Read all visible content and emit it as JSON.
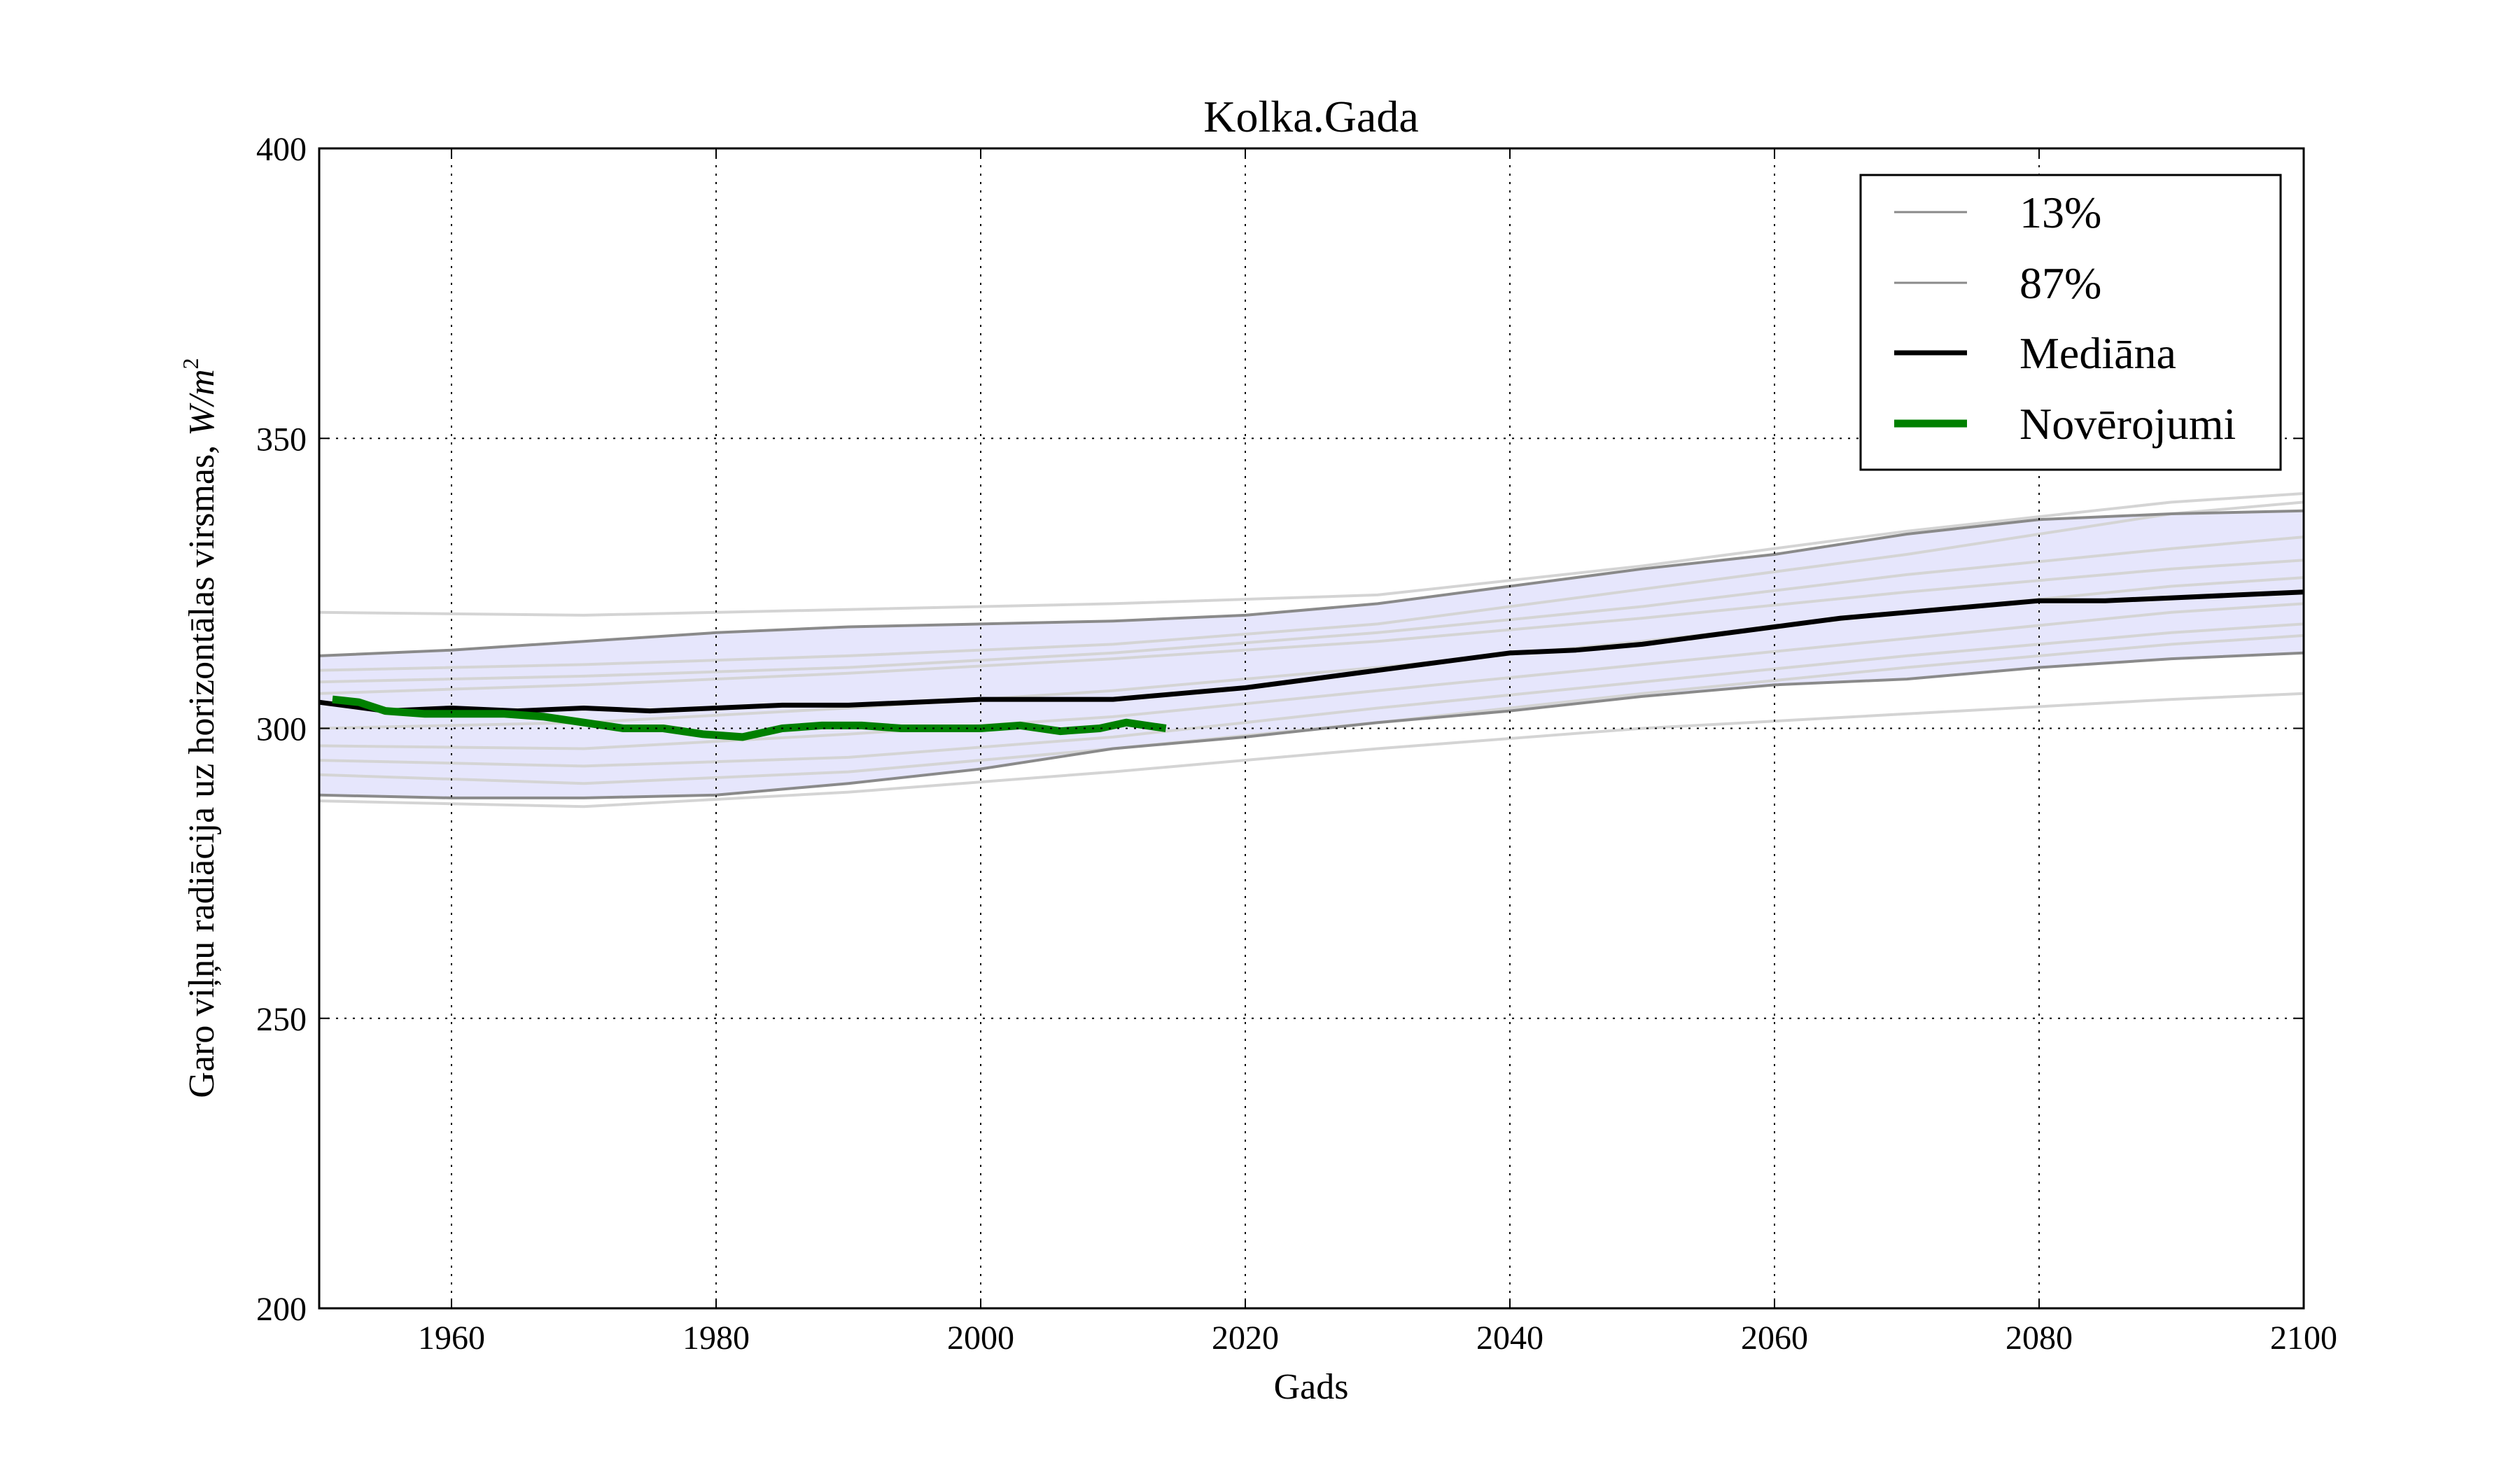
{
  "chart_data": {
    "type": "line",
    "title": "Kolka.Gada",
    "xlabel": "Gads",
    "ylabel": "Garo viļņu radiācija uz horizontālas virsmas, ",
    "ylabel_unit": "W/m",
    "ylabel_unit_sup": "2",
    "xlim": [
      1950,
      2100
    ],
    "ylim": [
      200,
      400
    ],
    "xticks": [
      1960,
      1980,
      2000,
      2020,
      2040,
      2060,
      2080,
      2100
    ],
    "yticks": [
      200,
      250,
      300,
      350,
      400
    ],
    "grid": true,
    "legend_position": "top-right",
    "legend": [
      {
        "label": "13%",
        "style": "thin-gray"
      },
      {
        "label": "87%",
        "style": "thin-gray"
      },
      {
        "label": "Mediāna",
        "style": "thick-black"
      },
      {
        "label": "Novērojumi",
        "style": "thick-green"
      }
    ],
    "colors": {
      "band_fill": "#e6e6fc",
      "percentile": "#8a8a8a",
      "ensemble": "#d4d4d4",
      "median": "#000000",
      "observations": "#008000"
    },
    "band": {
      "x": [
        1950,
        1960,
        1970,
        1980,
        1990,
        2000,
        2010,
        2020,
        2030,
        2040,
        2050,
        2060,
        2070,
        2080,
        2090,
        2100
      ],
      "lower": [
        288.5,
        288,
        288,
        288.5,
        290.5,
        293,
        296.5,
        298.5,
        301,
        303,
        305.5,
        307.5,
        308.5,
        310.5,
        312,
        313
      ],
      "upper": [
        312.5,
        313.5,
        315,
        316.5,
        317.5,
        318,
        318.5,
        319.5,
        321.5,
        324.5,
        327.5,
        330,
        333.5,
        336,
        337,
        337.5
      ]
    },
    "series": [
      {
        "name": "13%",
        "x": [
          1950,
          1960,
          1970,
          1980,
          1990,
          2000,
          2010,
          2020,
          2030,
          2040,
          2050,
          2060,
          2070,
          2080,
          2090,
          2100
        ],
        "values": [
          288.5,
          288,
          288,
          288.5,
          290.5,
          293,
          296.5,
          298.5,
          301,
          303,
          305.5,
          307.5,
          308.5,
          310.5,
          312,
          313
        ]
      },
      {
        "name": "87%",
        "x": [
          1950,
          1960,
          1970,
          1980,
          1990,
          2000,
          2010,
          2020,
          2030,
          2040,
          2050,
          2060,
          2070,
          2080,
          2090,
          2100
        ],
        "values": [
          312.5,
          313.5,
          315,
          316.5,
          317.5,
          318,
          318.5,
          319.5,
          321.5,
          324.5,
          327.5,
          330,
          333.5,
          336,
          337,
          337.5
        ]
      },
      {
        "name": "Mediāna",
        "x": [
          1950,
          1955,
          1960,
          1965,
          1970,
          1975,
          1980,
          1985,
          1990,
          1995,
          2000,
          2005,
          2010,
          2015,
          2020,
          2025,
          2030,
          2035,
          2040,
          2045,
          2050,
          2055,
          2060,
          2065,
          2070,
          2075,
          2080,
          2085,
          2090,
          2095,
          2100
        ],
        "values": [
          304.5,
          303,
          303.5,
          303,
          303.5,
          303,
          303.5,
          304,
          304,
          304.5,
          305,
          305,
          305,
          306,
          307,
          308.5,
          310,
          311.5,
          313,
          313.5,
          314.5,
          316,
          317.5,
          319,
          320,
          321,
          322,
          322,
          322.5,
          323,
          323.5
        ]
      },
      {
        "name": "Novērojumi",
        "x": [
          1951,
          1953,
          1955,
          1958,
          1961,
          1964,
          1967,
          1970,
          1973,
          1976,
          1979,
          1982,
          1985,
          1988,
          1991,
          1994,
          1997,
          2000,
          2003,
          2006,
          2009,
          2011,
          2014
        ],
        "values": [
          305,
          304.5,
          303,
          302.5,
          302.5,
          302.5,
          302,
          301,
          300,
          300,
          299,
          298.5,
          300,
          300.5,
          300.5,
          300,
          300,
          300,
          300.5,
          299.5,
          300,
          301,
          300
        ]
      }
    ],
    "ensemble": [
      {
        "x": [
          1950,
          1970,
          1990,
          2010,
          2030,
          2050,
          2070,
          2090,
          2100
        ],
        "values": [
          320,
          319.5,
          320.5,
          321.5,
          323,
          328,
          334,
          339,
          340.5
        ]
      },
      {
        "x": [
          1950,
          1970,
          1990,
          2010,
          2030,
          2050,
          2070,
          2090,
          2100
        ],
        "values": [
          310,
          311,
          312.5,
          314.5,
          318,
          324,
          330,
          337,
          339
        ]
      },
      {
        "x": [
          1950,
          1970,
          1990,
          2010,
          2030,
          2050,
          2070,
          2090,
          2100
        ],
        "values": [
          308,
          309,
          310.5,
          313,
          316.5,
          321,
          326.5,
          331,
          333
        ]
      },
      {
        "x": [
          1950,
          1970,
          1990,
          2010,
          2030,
          2050,
          2070,
          2090,
          2100
        ],
        "values": [
          306,
          307.5,
          309.5,
          312,
          315,
          319,
          323.5,
          327.5,
          329
        ]
      },
      {
        "x": [
          1950,
          1970,
          1990,
          2010,
          2030,
          2050,
          2070,
          2090,
          2100
        ],
        "values": [
          300,
          301,
          303.5,
          306.5,
          310.5,
          315,
          320,
          324.5,
          326
        ]
      },
      {
        "x": [
          1950,
          1970,
          1990,
          2010,
          2030,
          2050,
          2070,
          2090,
          2100
        ],
        "values": [
          297,
          296.5,
          299,
          302,
          306.5,
          311,
          315.5,
          320,
          321.5
        ]
      },
      {
        "x": [
          1950,
          1970,
          1990,
          2010,
          2030,
          2050,
          2070,
          2090,
          2100
        ],
        "values": [
          294.5,
          293.5,
          295,
          298.5,
          303.5,
          308,
          312.5,
          316.5,
          318
        ]
      },
      {
        "x": [
          1950,
          1970,
          1990,
          2010,
          2030,
          2050,
          2070,
          2090,
          2100
        ],
        "values": [
          292,
          290.5,
          292.5,
          296.5,
          301,
          306,
          310.5,
          314.5,
          316
        ]
      },
      {
        "x": [
          1950,
          1970,
          1990,
          2010,
          2030,
          2050,
          2070,
          2090,
          2100
        ],
        "values": [
          287.5,
          286.5,
          289,
          292.5,
          296.5,
          300,
          302.5,
          305,
          306
        ]
      }
    ]
  }
}
